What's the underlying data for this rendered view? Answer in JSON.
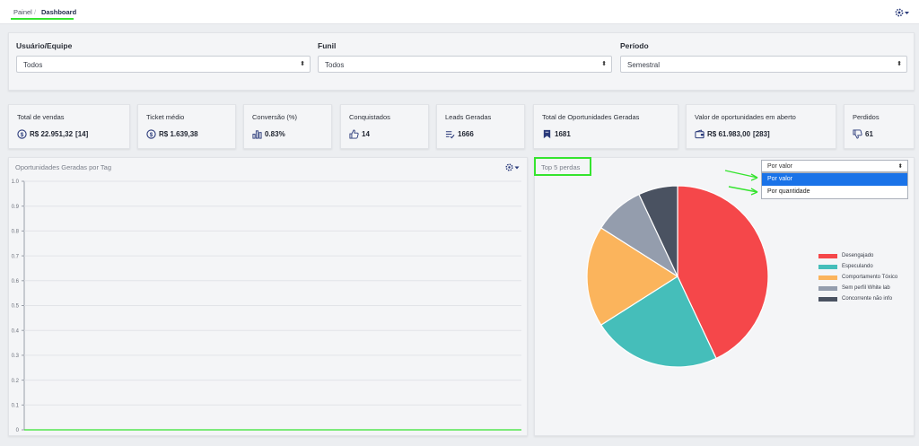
{
  "breadcrumb": {
    "parent": "Painel",
    "separator": "/",
    "current": "Dashboard"
  },
  "filters": [
    {
      "label": "Usuário/Equipe",
      "value": "Todos"
    },
    {
      "label": "Funil",
      "value": "Todos"
    },
    {
      "label": "Período",
      "value": "Semestral"
    }
  ],
  "kpis": [
    {
      "label": "Total de vendas",
      "value": "R$ 22.951,32",
      "extra": "[14]",
      "icon": "dollar-circle-icon"
    },
    {
      "label": "Ticket médio",
      "value": "R$ 1.639,38",
      "icon": "dollar-circle-icon"
    },
    {
      "label": "Conversão (%)",
      "value": "0.83%",
      "icon": "bar-chart-icon"
    },
    {
      "label": "Conquistados",
      "value": "14",
      "icon": "thumbs-up-icon"
    },
    {
      "label": "Leads Geradas",
      "value": "1666",
      "icon": "list-check-icon"
    },
    {
      "label": "Total de Oportunidades Geradas",
      "value": "1681",
      "icon": "bookmark-icon"
    },
    {
      "label": "Valor de oportunidades em aberto",
      "value": "R$ 61.983,00",
      "extra": "[283]",
      "icon": "wallet-icon"
    },
    {
      "label": "Perdidos",
      "value": "61",
      "icon": "thumbs-down-icon"
    }
  ],
  "tag_chart": {
    "title": "Oportunidades Geradas por Tag",
    "y_ticks": [
      "1.0",
      "0.9",
      "0.8",
      "0.7",
      "0.6",
      "0.5",
      "0.4",
      "0.3",
      "0.2",
      "0.1",
      "0"
    ]
  },
  "top5": {
    "title": "Top 5 perdas",
    "sort_value": "Por valor",
    "sort_options": [
      "Por valor",
      "Por quantidade"
    ],
    "highlight_color": "#35e42f",
    "arrow_color": "#35e42f"
  },
  "chart_data": [
    {
      "type": "line",
      "ylim": [
        0,
        1.0
      ],
      "y_ticks": [
        1.0,
        0.9,
        0.8,
        0.7,
        0.6,
        0.5,
        0.4,
        0.3,
        0.2,
        0.1,
        0
      ],
      "series": []
    },
    {
      "type": "pie",
      "categories": [
        "Desengajado",
        "Especulando",
        "Comportamento Tóxico",
        "Sem perfil White lab",
        "Concorrente não info"
      ],
      "values": [
        43,
        23,
        18,
        9,
        7
      ],
      "colors": [
        "#f5474a",
        "#45beba",
        "#fbb45c",
        "#949dad",
        "#4a5261"
      ],
      "legend_position": "right"
    }
  ]
}
